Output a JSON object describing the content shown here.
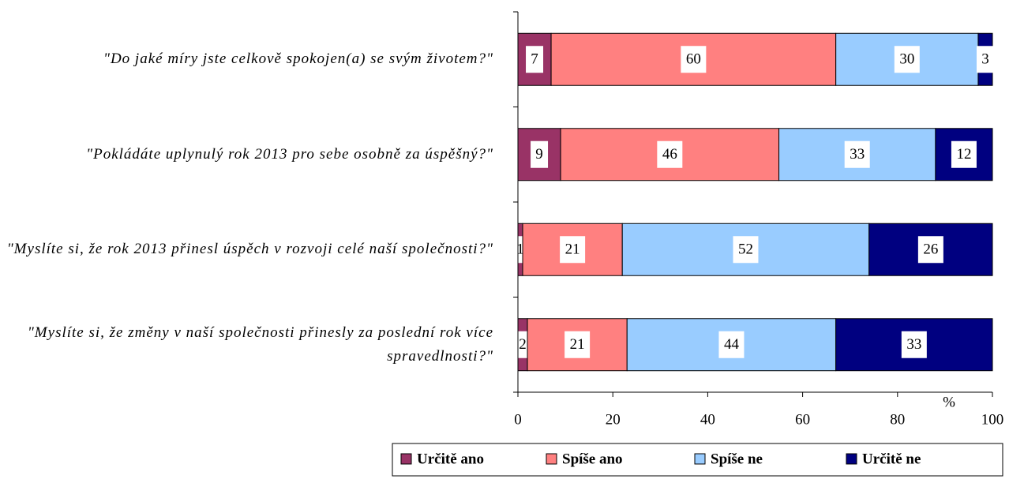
{
  "chart_data": {
    "type": "stacked_barh",
    "categories": [
      "\"Do jaké míry jste celkově spokojen(a) se svým životem?\"",
      "\"Pokládáte uplynulý rok 2013 pro sebe osobně za úspěšný?\"",
      "\"Myslíte si, že rok 2013 přinesl úspěch v rozvoji celé naší společnosti?\"",
      "\"Myslíte si, že změny v naší společnosti přinesly za poslední rok více spravedlnosti?\""
    ],
    "series": [
      {
        "name": "Určitě ano",
        "color": "#993366",
        "values": [
          7,
          9,
          1,
          2
        ]
      },
      {
        "name": "Spíše ano",
        "color": "#ff8080",
        "values": [
          60,
          46,
          21,
          21
        ]
      },
      {
        "name": "Spíše ne",
        "color": "#99ccff",
        "values": [
          30,
          33,
          52,
          44
        ]
      },
      {
        "name": "Určitě ne",
        "color": "#000080",
        "values": [
          3,
          12,
          26,
          33
        ]
      }
    ],
    "x_label": "%",
    "xlim": [
      0,
      100
    ],
    "xticks": [
      0,
      20,
      40,
      60,
      80,
      100
    ],
    "legend": "bottom"
  }
}
